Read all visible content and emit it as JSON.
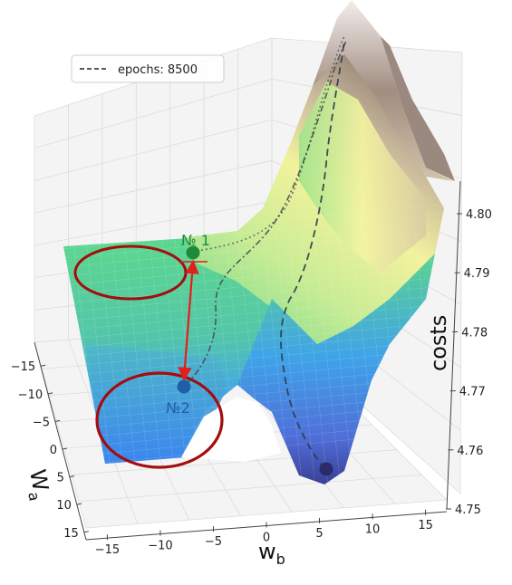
{
  "chart_data": {
    "type": "surface3d",
    "title": "",
    "legend": {
      "placement": "top-left",
      "entries": [
        {
          "label": "epochs: 8500",
          "style": "dashed",
          "color": "#222222"
        }
      ]
    },
    "axes": {
      "x": {
        "label": "w",
        "label_sub": "b",
        "ticks": [
          "−15",
          "−10",
          "−5",
          "0",
          "5",
          "10",
          "15"
        ],
        "range": [
          -17,
          17
        ]
      },
      "y": {
        "label": "W",
        "label_sub": "a",
        "ticks": [
          "−15",
          "−10",
          "−5",
          "0",
          "5",
          "10",
          "15"
        ],
        "range": [
          -17,
          17
        ]
      },
      "z": {
        "label": "costs",
        "ticks": [
          "4.75",
          "4.76",
          "4.77",
          "4.78",
          "4.79",
          "4.80"
        ],
        "range": [
          4.75,
          4.8
        ]
      }
    },
    "grid": true,
    "colormap": "terrain",
    "annotations": [
      {
        "label": "№ 1",
        "color": "#1f8a3a",
        "kind": "local minimum point"
      },
      {
        "label": "№2",
        "color": "#1f5fa8",
        "kind": "local minimum point"
      },
      {
        "label": "",
        "color": "#2b2b6b",
        "kind": "global minimum point"
      }
    ],
    "highlights": [
      {
        "shape": "ellipse",
        "color": "#a30d0d",
        "target": "№ 1 plateau"
      },
      {
        "shape": "ellipse",
        "color": "#a30d0d",
        "target": "№2 basin"
      }
    ],
    "arrow": {
      "from": "№ 1",
      "to": "№2",
      "color": "#e0201a",
      "bidirectional": true
    },
    "colors": {
      "green": "#58d48a",
      "blue": "#3d8ef0",
      "yellow": "#f3f39a",
      "brown": "#9a8476",
      "deep": "#2b2b6b"
    }
  }
}
